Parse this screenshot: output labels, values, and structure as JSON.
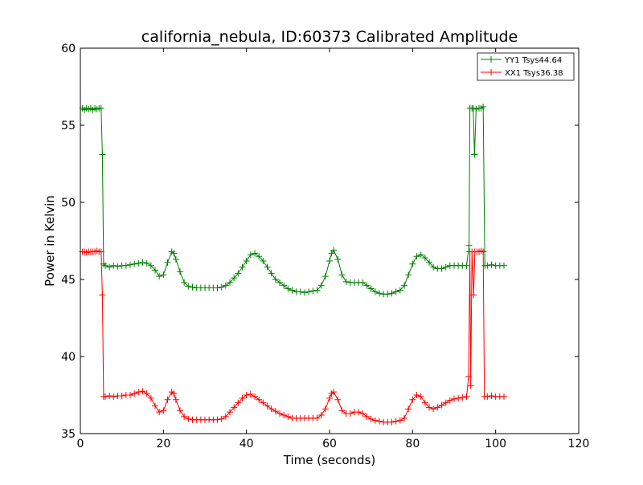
{
  "chart_data": {
    "type": "line",
    "title": "california_nebula, ID:60373 Calibrated Amplitude",
    "xlabel": "Time (seconds)",
    "ylabel": "Power in Kelvin",
    "xlim": [
      0,
      120
    ],
    "ylim": [
      35,
      60
    ],
    "xticks": [
      0,
      20,
      40,
      60,
      80,
      100,
      120
    ],
    "yticks": [
      35,
      40,
      45,
      50,
      55,
      60
    ],
    "xtick_labels": [
      "0",
      "20",
      "40",
      "60",
      "80",
      "100",
      "120"
    ],
    "ytick_labels": [
      "35",
      "40",
      "45",
      "50",
      "55",
      "60"
    ],
    "grid": false,
    "legend_position": "top-right",
    "marker": "plus",
    "series": [
      {
        "name": "YY1 Tsys44.64",
        "color": "#008000",
        "points": [
          [
            0.5,
            56.1
          ],
          [
            1,
            56.0
          ],
          [
            1.5,
            56.1
          ],
          [
            2,
            56.05
          ],
          [
            2.5,
            56.1
          ],
          [
            3,
            56.0
          ],
          [
            3.5,
            56.1
          ],
          [
            4,
            56.05
          ],
          [
            4.5,
            56.1
          ],
          [
            5,
            56.1
          ],
          [
            5.3,
            53.1
          ],
          [
            5.6,
            46.0
          ],
          [
            6,
            45.9
          ],
          [
            7,
            45.8
          ],
          [
            8,
            45.9
          ],
          [
            9,
            45.85
          ],
          [
            10,
            45.9
          ],
          [
            11,
            45.9
          ],
          [
            12,
            45.95
          ],
          [
            13,
            46.0
          ],
          [
            14,
            46.05
          ],
          [
            15,
            46.1
          ],
          [
            16,
            46.05
          ],
          [
            17,
            45.9
          ],
          [
            18,
            45.6
          ],
          [
            19,
            45.2
          ],
          [
            20,
            45.3
          ],
          [
            21,
            46.1
          ],
          [
            22,
            46.8
          ],
          [
            22.5,
            46.7
          ],
          [
            23,
            46.3
          ],
          [
            24,
            45.5
          ],
          [
            25,
            44.8
          ],
          [
            26,
            44.55
          ],
          [
            27,
            44.5
          ],
          [
            28,
            44.45
          ],
          [
            29,
            44.45
          ],
          [
            30,
            44.45
          ],
          [
            31,
            44.45
          ],
          [
            32,
            44.45
          ],
          [
            33,
            44.45
          ],
          [
            34,
            44.5
          ],
          [
            35,
            44.6
          ],
          [
            36,
            44.8
          ],
          [
            37,
            45.1
          ],
          [
            38,
            45.4
          ],
          [
            39,
            45.8
          ],
          [
            40,
            46.2
          ],
          [
            41,
            46.6
          ],
          [
            42,
            46.7
          ],
          [
            43,
            46.5
          ],
          [
            44,
            46.2
          ],
          [
            45,
            45.8
          ],
          [
            46,
            45.4
          ],
          [
            47,
            45.0
          ],
          [
            48,
            44.8
          ],
          [
            49,
            44.6
          ],
          [
            50,
            44.4
          ],
          [
            51,
            44.3
          ],
          [
            52,
            44.2
          ],
          [
            53,
            44.2
          ],
          [
            54,
            44.15
          ],
          [
            55,
            44.2
          ],
          [
            56,
            44.25
          ],
          [
            57,
            44.3
          ],
          [
            58,
            44.6
          ],
          [
            59,
            45.2
          ],
          [
            60,
            46.2
          ],
          [
            60.5,
            46.7
          ],
          [
            61,
            46.9
          ],
          [
            62,
            46.3
          ],
          [
            63,
            45.3
          ],
          [
            64,
            44.85
          ],
          [
            65,
            44.8
          ],
          [
            66,
            44.8
          ],
          [
            67,
            44.8
          ],
          [
            68,
            44.8
          ],
          [
            69,
            44.6
          ],
          [
            70,
            44.4
          ],
          [
            71,
            44.2
          ],
          [
            72,
            44.1
          ],
          [
            73,
            44.05
          ],
          [
            74,
            44.05
          ],
          [
            75,
            44.1
          ],
          [
            76,
            44.2
          ],
          [
            77,
            44.3
          ],
          [
            78,
            44.6
          ],
          [
            79,
            45.3
          ],
          [
            80,
            46.0
          ],
          [
            81,
            46.5
          ],
          [
            82,
            46.6
          ],
          [
            83,
            46.4
          ],
          [
            84,
            46.1
          ],
          [
            85,
            45.8
          ],
          [
            86,
            45.7
          ],
          [
            87,
            45.7
          ],
          [
            88,
            45.8
          ],
          [
            89,
            45.9
          ],
          [
            90,
            45.9
          ],
          [
            91,
            45.9
          ],
          [
            92,
            45.9
          ],
          [
            93,
            45.9
          ],
          [
            93.6,
            47.2
          ],
          [
            93.8,
            56.1
          ],
          [
            94.3,
            56.1
          ],
          [
            94.6,
            56.1
          ],
          [
            94.9,
            53.1
          ],
          [
            95.3,
            56.05
          ],
          [
            96,
            56.1
          ],
          [
            96.5,
            56.1
          ],
          [
            97,
            56.2
          ],
          [
            97.4,
            45.9
          ],
          [
            98,
            45.9
          ],
          [
            99,
            45.95
          ],
          [
            100,
            45.9
          ],
          [
            101,
            45.9
          ],
          [
            102,
            45.9
          ]
        ]
      },
      {
        "name": "XX1 Tsys36.38",
        "color": "#ff0000",
        "points": [
          [
            0.5,
            46.8
          ],
          [
            1,
            46.8
          ],
          [
            1.5,
            46.75
          ],
          [
            2,
            46.8
          ],
          [
            2.5,
            46.8
          ],
          [
            3,
            46.8
          ],
          [
            3.5,
            46.8
          ],
          [
            4,
            46.85
          ],
          [
            4.5,
            46.8
          ],
          [
            5,
            46.8
          ],
          [
            5.3,
            44.0
          ],
          [
            5.6,
            37.4
          ],
          [
            6,
            37.4
          ],
          [
            7,
            37.45
          ],
          [
            8,
            37.4
          ],
          [
            9,
            37.45
          ],
          [
            10,
            37.45
          ],
          [
            11,
            37.5
          ],
          [
            12,
            37.5
          ],
          [
            13,
            37.6
          ],
          [
            14,
            37.7
          ],
          [
            15,
            37.75
          ],
          [
            16,
            37.6
          ],
          [
            17,
            37.3
          ],
          [
            18,
            36.8
          ],
          [
            19,
            36.4
          ],
          [
            20,
            36.5
          ],
          [
            21,
            37.2
          ],
          [
            22,
            37.7
          ],
          [
            22.5,
            37.6
          ],
          [
            23,
            37.2
          ],
          [
            24,
            36.5
          ],
          [
            25,
            36.1
          ],
          [
            26,
            35.95
          ],
          [
            27,
            35.9
          ],
          [
            28,
            35.9
          ],
          [
            29,
            35.9
          ],
          [
            30,
            35.9
          ],
          [
            31,
            35.9
          ],
          [
            32,
            35.9
          ],
          [
            33,
            35.9
          ],
          [
            34,
            35.95
          ],
          [
            35,
            36.1
          ],
          [
            36,
            36.4
          ],
          [
            37,
            36.7
          ],
          [
            38,
            37.0
          ],
          [
            39,
            37.3
          ],
          [
            40,
            37.5
          ],
          [
            41,
            37.55
          ],
          [
            42,
            37.4
          ],
          [
            43,
            37.2
          ],
          [
            44,
            37.0
          ],
          [
            45,
            36.8
          ],
          [
            46,
            36.6
          ],
          [
            47,
            36.45
          ],
          [
            48,
            36.3
          ],
          [
            49,
            36.2
          ],
          [
            50,
            36.1
          ],
          [
            51,
            36.0
          ],
          [
            52,
            36.0
          ],
          [
            53,
            36.0
          ],
          [
            54,
            36.0
          ],
          [
            55,
            36.0
          ],
          [
            56,
            36.0
          ],
          [
            57,
            36.0
          ],
          [
            58,
            36.2
          ],
          [
            59,
            36.6
          ],
          [
            60,
            37.3
          ],
          [
            60.5,
            37.6
          ],
          [
            61,
            37.7
          ],
          [
            62,
            37.2
          ],
          [
            63,
            36.5
          ],
          [
            64,
            36.3
          ],
          [
            65,
            36.3
          ],
          [
            66,
            36.4
          ],
          [
            67,
            36.4
          ],
          [
            68,
            36.3
          ],
          [
            69,
            36.1
          ],
          [
            70,
            35.95
          ],
          [
            71,
            35.85
          ],
          [
            72,
            35.8
          ],
          [
            73,
            35.75
          ],
          [
            74,
            35.75
          ],
          [
            75,
            35.75
          ],
          [
            76,
            35.8
          ],
          [
            77,
            35.85
          ],
          [
            78,
            36.0
          ],
          [
            79,
            36.6
          ],
          [
            80,
            37.2
          ],
          [
            81,
            37.5
          ],
          [
            82,
            37.4
          ],
          [
            83,
            37.0
          ],
          [
            84,
            36.7
          ],
          [
            85,
            36.6
          ],
          [
            86,
            36.7
          ],
          [
            87,
            36.85
          ],
          [
            88,
            37.0
          ],
          [
            89,
            37.15
          ],
          [
            90,
            37.25
          ],
          [
            91,
            37.3
          ],
          [
            92,
            37.35
          ],
          [
            93,
            37.4
          ],
          [
            93.5,
            38.7
          ],
          [
            93.8,
            46.8
          ],
          [
            94,
            38.1
          ],
          [
            94.3,
            46.8
          ],
          [
            94.7,
            44.0
          ],
          [
            95,
            46.8
          ],
          [
            95.5,
            46.8
          ],
          [
            96,
            46.8
          ],
          [
            96.5,
            46.85
          ],
          [
            97,
            46.8
          ],
          [
            97.3,
            37.4
          ],
          [
            98,
            37.4
          ],
          [
            99,
            37.45
          ],
          [
            100,
            37.4
          ],
          [
            101,
            37.4
          ],
          [
            102,
            37.4
          ]
        ]
      }
    ]
  }
}
